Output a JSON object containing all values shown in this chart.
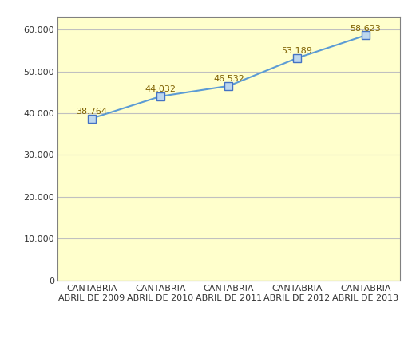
{
  "categories": [
    "CANTABRIA\nABRIL DE 2009",
    "CANTABRIA\nABRIL DE 2010",
    "CANTABRIA\nABRIL DE 2011",
    "CANTABRIA\nABRIL DE 2012",
    "CANTABRIA\nABRIL DE 2013"
  ],
  "values": [
    38764,
    44032,
    46532,
    53189,
    58623
  ],
  "labels": [
    "38.764",
    "44.032",
    "46.532",
    "53.189",
    "58.623"
  ],
  "line_color": "#5B9BD5",
  "marker_face_color": "#BDD7EE",
  "marker_edge_color": "#4472C4",
  "background_color": "#FFFFCC",
  "outer_background": "#FFFFFF",
  "grid_color": "#C0C0C0",
  "border_color": "#808080",
  "ylim": [
    0,
    63000
  ],
  "yticks": [
    0,
    10000,
    20000,
    30000,
    40000,
    50000,
    60000
  ],
  "ytick_labels": [
    "0",
    "10.000",
    "20.000",
    "30.000",
    "40.000",
    "50.000",
    "60.000"
  ],
  "tick_fontsize": 8,
  "annotation_fontsize": 8,
  "annotation_color": "#7F6000"
}
